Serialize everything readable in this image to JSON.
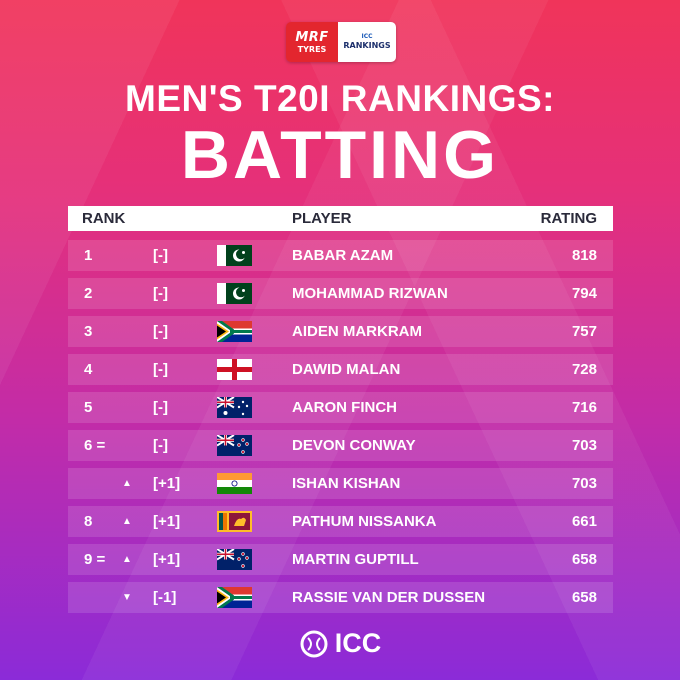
{
  "logos": {
    "sponsor_line1": "MRF",
    "sponsor_line2": "TYRES",
    "icc_small": "ICC",
    "icc_rankings": "RANKINGS"
  },
  "title_line1": "MEN'S T20I RANKINGS:",
  "title_line2": "BATTING",
  "header": {
    "rank": "RANK",
    "player": "PLAYER",
    "rating": "RATING"
  },
  "rows": [
    {
      "rank": "1",
      "arrow": "",
      "change": "[-]",
      "flag": "pakistan",
      "player": "BABAR AZAM",
      "rating": "818"
    },
    {
      "rank": "2",
      "arrow": "",
      "change": "[-]",
      "flag": "pakistan",
      "player": "MOHAMMAD RIZWAN",
      "rating": "794"
    },
    {
      "rank": "3",
      "arrow": "",
      "change": "[-]",
      "flag": "south-africa",
      "player": "AIDEN MARKRAM",
      "rating": "757"
    },
    {
      "rank": "4",
      "arrow": "",
      "change": "[-]",
      "flag": "england",
      "player": "DAWID MALAN",
      "rating": "728"
    },
    {
      "rank": "5",
      "arrow": "",
      "change": "[-]",
      "flag": "australia",
      "player": "AARON FINCH",
      "rating": "716"
    },
    {
      "rank": "6 =",
      "arrow": "",
      "change": "[-]",
      "flag": "new-zealand",
      "player": "DEVON CONWAY",
      "rating": "703"
    },
    {
      "rank": "",
      "arrow": "▲",
      "change": "[+1]",
      "flag": "india",
      "player": "ISHAN KISHAN",
      "rating": "703"
    },
    {
      "rank": "8",
      "arrow": "▲",
      "change": "[+1]",
      "flag": "sri-lanka",
      "player": "PATHUM NISSANKA",
      "rating": "661"
    },
    {
      "rank": "9 =",
      "arrow": "▲",
      "change": "[+1]",
      "flag": "new-zealand",
      "player": "MARTIN GUPTILL",
      "rating": "658"
    },
    {
      "rank": "",
      "arrow": "▼",
      "change": "[-1]",
      "flag": "south-africa",
      "player": "RASSIE VAN DER DUSSEN",
      "rating": "658"
    }
  ],
  "footer": {
    "text": "ICC",
    "icon": "icc-ball-icon"
  }
}
